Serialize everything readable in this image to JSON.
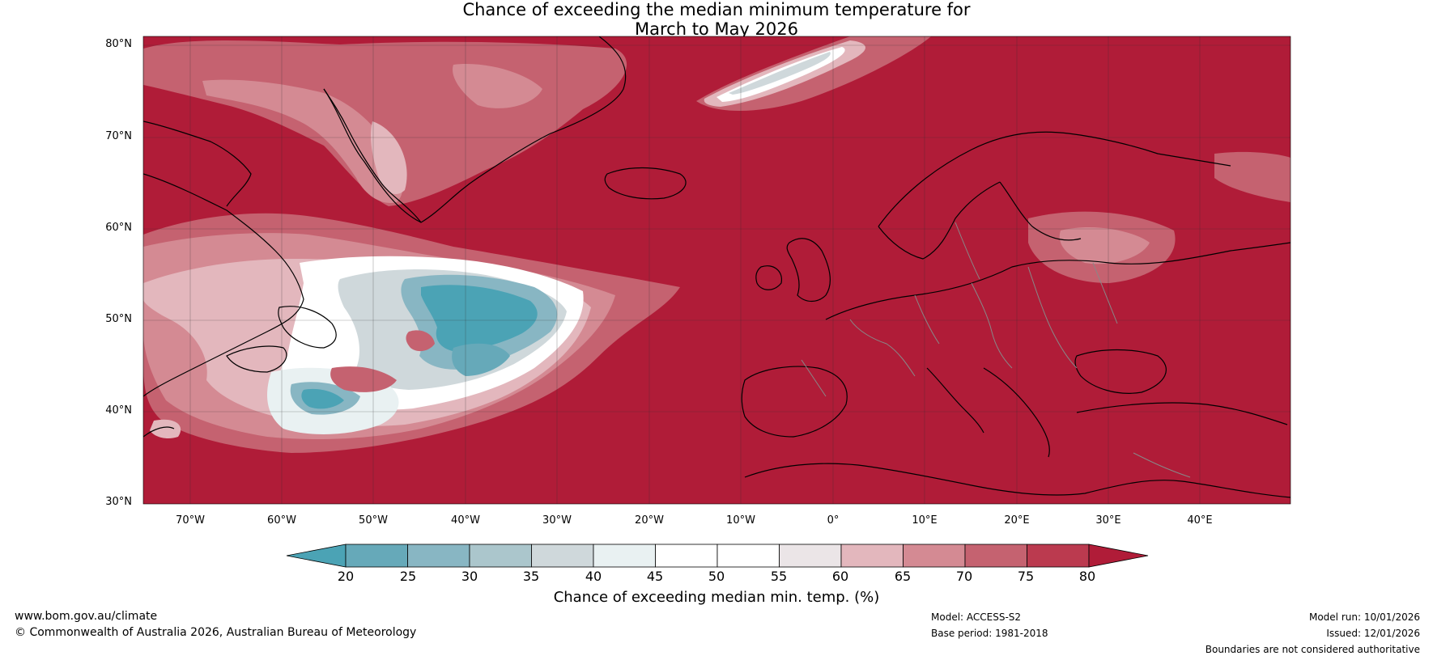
{
  "title": {
    "line1": "Chance of exceeding the median minimum temperature for",
    "line2": "March to May 2026"
  },
  "latitudes": [
    "80°N",
    "70°N",
    "60°N",
    "50°N",
    "40°N",
    "30°N"
  ],
  "longitudes": [
    "70°W",
    "60°W",
    "50°W",
    "40°W",
    "30°W",
    "20°W",
    "10°W",
    "0°",
    "10°E",
    "20°E",
    "30°E",
    "40°E"
  ],
  "colorbar": {
    "title": "Chance of exceeding median min. temp. (%)",
    "ticks": [
      "20",
      "25",
      "30",
      "35",
      "40",
      "45",
      "50",
      "55",
      "60",
      "65",
      "70",
      "75",
      "80"
    ],
    "colors": [
      "#4ba3b5",
      "#66a9b9",
      "#88b6c3",
      "#abc6cc",
      "#cfd8db",
      "#e9f1f2",
      "#ffffff",
      "#ffffff",
      "#ebe5e7",
      "#e3b7bd",
      "#d48a93",
      "#c56270",
      "#bb3a4f",
      "#b01c38"
    ]
  },
  "colors": {
    "high": "#b01c38",
    "low": "#4ba3b5"
  },
  "footer": {
    "website": "www.bom.gov.au/climate",
    "copyright": "© Commonwealth of Australia 2026, Australian Bureau of Meteorology",
    "model": "Model: ACCESS-S2",
    "base_period": "Base period: 1981-2018",
    "model_run": "Model run: 10/01/2026",
    "issued": "Issued: 12/01/2026",
    "disclaimer": "Boundaries are not considered authoritative"
  }
}
